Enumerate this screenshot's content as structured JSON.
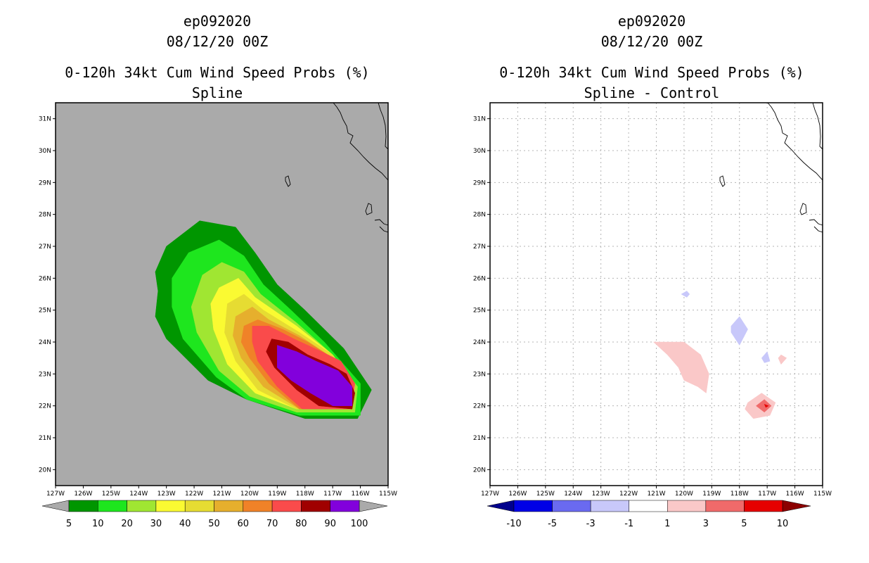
{
  "chart_data": [
    {
      "type": "heatmap",
      "title": [
        "ep092020",
        "08/12/20 00Z",
        "0-120h 34kt Cum Wind Speed Probs (%)",
        "Spline"
      ],
      "panel": "left",
      "xlim": [
        -127,
        -115
      ],
      "ylim": [
        19.5,
        31.5
      ],
      "x_tick_values": [
        -127,
        -126,
        -125,
        -124,
        -123,
        -122,
        -121,
        -120,
        -119,
        -118,
        -117,
        -116,
        -115
      ],
      "x_tick_labels": [
        "127W",
        "126W",
        "125W",
        "124W",
        "123W",
        "122W",
        "121W",
        "120W",
        "119W",
        "118W",
        "117W",
        "116W",
        "115W"
      ],
      "y_tick_values": [
        20,
        21,
        22,
        23,
        24,
        25,
        26,
        27,
        28,
        29,
        30,
        31
      ],
      "y_tick_labels": [
        "20N",
        "21N",
        "22N",
        "23N",
        "24N",
        "25N",
        "26N",
        "27N",
        "28N",
        "29N",
        "30N",
        "31N"
      ],
      "background": "#aaaaaa",
      "grid": false,
      "colorbar": {
        "levels": [
          "5",
          "10",
          "20",
          "30",
          "40",
          "50",
          "60",
          "70",
          "80",
          "90",
          "100"
        ],
        "colors": [
          "#009600",
          "#1ee61e",
          "#a0e632",
          "#fafa32",
          "#e6dc32",
          "#e6af2d",
          "#f08228",
          "#fa4b4b",
          "#a00000",
          "#8200dc"
        ],
        "arrow_left": "#aaaaaa",
        "arrow_right": "#aaaaaa"
      },
      "contours": [
        {
          "level": 5,
          "color": "#009600",
          "polygon": [
            [
              -123.0,
              27.0
            ],
            [
              -121.8,
              27.8
            ],
            [
              -120.5,
              27.6
            ],
            [
              -119.8,
              26.8
            ],
            [
              -119.0,
              25.8
            ],
            [
              -118.0,
              25.0
            ],
            [
              -116.6,
              23.8
            ],
            [
              -115.6,
              22.5
            ],
            [
              -116.1,
              21.6
            ],
            [
              -118.0,
              21.6
            ],
            [
              -120.1,
              22.2
            ],
            [
              -121.5,
              22.8
            ],
            [
              -123.0,
              24.1
            ],
            [
              -123.4,
              24.8
            ],
            [
              -123.3,
              25.6
            ],
            [
              -123.4,
              26.2
            ]
          ]
        },
        {
          "level": 10,
          "color": "#1ee61e",
          "polygon": [
            [
              -122.2,
              26.8
            ],
            [
              -121.1,
              27.2
            ],
            [
              -120.2,
              26.7
            ],
            [
              -119.5,
              25.8
            ],
            [
              -118.5,
              25.0
            ],
            [
              -117.3,
              24.0
            ],
            [
              -116.0,
              22.7
            ],
            [
              -116.0,
              21.7
            ],
            [
              -118.2,
              21.7
            ],
            [
              -120.1,
              22.2
            ],
            [
              -121.2,
              22.9
            ],
            [
              -122.4,
              24.1
            ],
            [
              -122.8,
              25.1
            ],
            [
              -122.8,
              26.0
            ]
          ]
        },
        {
          "level": 20,
          "color": "#a0e632",
          "polygon": [
            [
              -121.7,
              26.1
            ],
            [
              -121.0,
              26.5
            ],
            [
              -120.2,
              26.2
            ],
            [
              -119.6,
              25.5
            ],
            [
              -118.3,
              24.6
            ],
            [
              -117.0,
              23.6
            ],
            [
              -116.1,
              22.6
            ],
            [
              -116.2,
              21.8
            ],
            [
              -118.3,
              21.8
            ],
            [
              -120.0,
              22.3
            ],
            [
              -121.1,
              23.1
            ],
            [
              -121.9,
              24.3
            ],
            [
              -122.1,
              25.1
            ]
          ]
        },
        {
          "level": 30,
          "color": "#fafa32",
          "polygon": [
            [
              -121.1,
              25.7
            ],
            [
              -120.4,
              26.0
            ],
            [
              -119.8,
              25.4
            ],
            [
              -118.3,
              24.5
            ],
            [
              -117.0,
              23.6
            ],
            [
              -116.2,
              22.6
            ],
            [
              -116.3,
              21.9
            ],
            [
              -118.3,
              21.9
            ],
            [
              -119.8,
              22.4
            ],
            [
              -120.8,
              23.3
            ],
            [
              -121.3,
              24.4
            ],
            [
              -121.4,
              25.2
            ]
          ]
        },
        {
          "level": 40,
          "color": "#e6dc32",
          "polygon": [
            [
              -120.8,
              25.2
            ],
            [
              -120.2,
              25.5
            ],
            [
              -119.5,
              25.0
            ],
            [
              -118.2,
              24.3
            ],
            [
              -117.0,
              23.6
            ],
            [
              -116.3,
              22.7
            ],
            [
              -116.4,
              21.9
            ],
            [
              -118.3,
              21.9
            ],
            [
              -119.7,
              22.5
            ],
            [
              -120.5,
              23.4
            ],
            [
              -120.9,
              24.3
            ]
          ]
        },
        {
          "level": 50,
          "color": "#e6af2d",
          "polygon": [
            [
              -120.5,
              24.8
            ],
            [
              -119.9,
              25.1
            ],
            [
              -119.3,
              24.7
            ],
            [
              -118.2,
              24.2
            ],
            [
              -117.0,
              23.5
            ],
            [
              -116.3,
              22.7
            ],
            [
              -116.4,
              21.9
            ],
            [
              -118.2,
              21.9
            ],
            [
              -119.5,
              22.6
            ],
            [
              -120.3,
              23.5
            ],
            [
              -120.6,
              24.2
            ]
          ]
        },
        {
          "level": 60,
          "color": "#f08228",
          "polygon": [
            [
              -120.2,
              24.5
            ],
            [
              -119.7,
              24.7
            ],
            [
              -118.8,
              24.4
            ],
            [
              -117.9,
              24.0
            ],
            [
              -117.0,
              23.5
            ],
            [
              -116.3,
              22.7
            ],
            [
              -116.4,
              21.9
            ],
            [
              -118.2,
              21.9
            ],
            [
              -119.3,
              22.7
            ],
            [
              -120.0,
              23.5
            ],
            [
              -120.3,
              24.0
            ]
          ]
        },
        {
          "level": 70,
          "color": "#fa4b4b",
          "polygon": [
            [
              -119.9,
              24.5
            ],
            [
              -119.3,
              24.5
            ],
            [
              -118.4,
              24.1
            ],
            [
              -117.4,
              23.7
            ],
            [
              -116.7,
              23.4
            ],
            [
              -116.2,
              22.7
            ],
            [
              -116.3,
              21.9
            ],
            [
              -118.1,
              21.9
            ],
            [
              -119.0,
              22.6
            ],
            [
              -119.7,
              23.4
            ],
            [
              -119.9,
              24.0
            ]
          ]
        },
        {
          "level": 80,
          "color": "#a00000",
          "polygon": [
            [
              -119.2,
              24.1
            ],
            [
              -118.6,
              24.0
            ],
            [
              -117.9,
              23.6
            ],
            [
              -117.1,
              23.3
            ],
            [
              -116.5,
              23.0
            ],
            [
              -116.2,
              22.4
            ],
            [
              -116.3,
              21.9
            ],
            [
              -117.5,
              22.0
            ],
            [
              -118.3,
              22.5
            ],
            [
              -119.1,
              23.2
            ],
            [
              -119.4,
              23.7
            ]
          ]
        },
        {
          "level": 90,
          "color": "#8200dc",
          "polygon": [
            [
              -119.0,
              23.9
            ],
            [
              -118.3,
              23.7
            ],
            [
              -117.6,
              23.4
            ],
            [
              -116.8,
              23.1
            ],
            [
              -116.3,
              22.6
            ],
            [
              -116.3,
              22.0
            ],
            [
              -117.0,
              22.0
            ],
            [
              -117.8,
              22.4
            ],
            [
              -118.5,
              22.8
            ],
            [
              -119.0,
              23.2
            ]
          ]
        }
      ]
    },
    {
      "type": "heatmap",
      "title": [
        "ep092020",
        "08/12/20 00Z",
        "0-120h 34kt Cum Wind Speed Probs (%)",
        "Spline - Control"
      ],
      "panel": "right",
      "xlim": [
        -127,
        -115
      ],
      "ylim": [
        19.5,
        31.5
      ],
      "x_tick_values": [
        -127,
        -126,
        -125,
        -124,
        -123,
        -122,
        -121,
        -120,
        -119,
        -118,
        -117,
        -116,
        -115
      ],
      "x_tick_labels": [
        "127W",
        "126W",
        "125W",
        "124W",
        "123W",
        "122W",
        "121W",
        "120W",
        "119W",
        "118W",
        "117W",
        "116W",
        "115W"
      ],
      "y_tick_values": [
        20,
        21,
        22,
        23,
        24,
        25,
        26,
        27,
        28,
        29,
        30,
        31
      ],
      "y_tick_labels": [
        "20N",
        "21N",
        "22N",
        "23N",
        "24N",
        "25N",
        "26N",
        "27N",
        "28N",
        "29N",
        "30N",
        "31N"
      ],
      "background": "#ffffff",
      "grid": true,
      "colorbar": {
        "levels": [
          "-10",
          "-5",
          "-3",
          "-1",
          "1",
          "3",
          "5",
          "10"
        ],
        "colors": [
          "#0000e6",
          "#6a6af0",
          "#c8c8fa",
          "#ffffff",
          "#fac8c8",
          "#f06a6a",
          "#e60000"
        ],
        "arrow_left": "#00008c",
        "arrow_right": "#8c0000"
      },
      "contours": [
        {
          "level": "-3..-1",
          "color": "#c8c8fa",
          "polygon": [
            [
              -120.1,
              25.5
            ],
            [
              -119.9,
              25.6
            ],
            [
              -119.8,
              25.5
            ],
            [
              -119.9,
              25.4
            ]
          ]
        },
        {
          "level": "-3..-1",
          "color": "#c8c8fa",
          "polygon": [
            [
              -118.3,
              24.5
            ],
            [
              -118.0,
              24.8
            ],
            [
              -117.7,
              24.4
            ],
            [
              -118.0,
              23.9
            ],
            [
              -118.3,
              24.3
            ]
          ]
        },
        {
          "level": "-3..-1",
          "color": "#c8c8fa",
          "polygon": [
            [
              -117.2,
              23.5
            ],
            [
              -117.0,
              23.7
            ],
            [
              -116.9,
              23.4
            ],
            [
              -117.1,
              23.35
            ]
          ]
        },
        {
          "level": "1..3",
          "color": "#fac8c8",
          "polygon": [
            [
              -121.1,
              24.0
            ],
            [
              -120.0,
              24.0
            ],
            [
              -119.4,
              23.6
            ],
            [
              -119.1,
              23.0
            ],
            [
              -119.2,
              22.4
            ],
            [
              -119.5,
              22.6
            ],
            [
              -120.0,
              22.8
            ],
            [
              -120.2,
              23.2
            ],
            [
              -120.6,
              23.6
            ]
          ]
        },
        {
          "level": "1..3",
          "color": "#fac8c8",
          "polygon": [
            [
              -116.5,
              23.6
            ],
            [
              -116.3,
              23.5
            ],
            [
              -116.5,
              23.3
            ],
            [
              -116.6,
              23.5
            ]
          ]
        },
        {
          "level": "1..3",
          "color": "#fac8c8",
          "polygon": [
            [
              -117.7,
              22.1
            ],
            [
              -117.2,
              22.4
            ],
            [
              -116.7,
              22.1
            ],
            [
              -116.9,
              21.7
            ],
            [
              -117.5,
              21.6
            ],
            [
              -117.8,
              21.9
            ]
          ]
        },
        {
          "level": "3..5",
          "color": "#f06a6a",
          "polygon": [
            [
              -117.4,
              22.0
            ],
            [
              -117.1,
              22.2
            ],
            [
              -116.85,
              22.0
            ],
            [
              -117.1,
              21.8
            ]
          ]
        },
        {
          "level": "5..10",
          "color": "#e60000",
          "polygon": [
            [
              -117.1,
              22.05
            ],
            [
              -116.95,
              22.0
            ],
            [
              -117.05,
              21.95
            ]
          ]
        }
      ]
    }
  ]
}
